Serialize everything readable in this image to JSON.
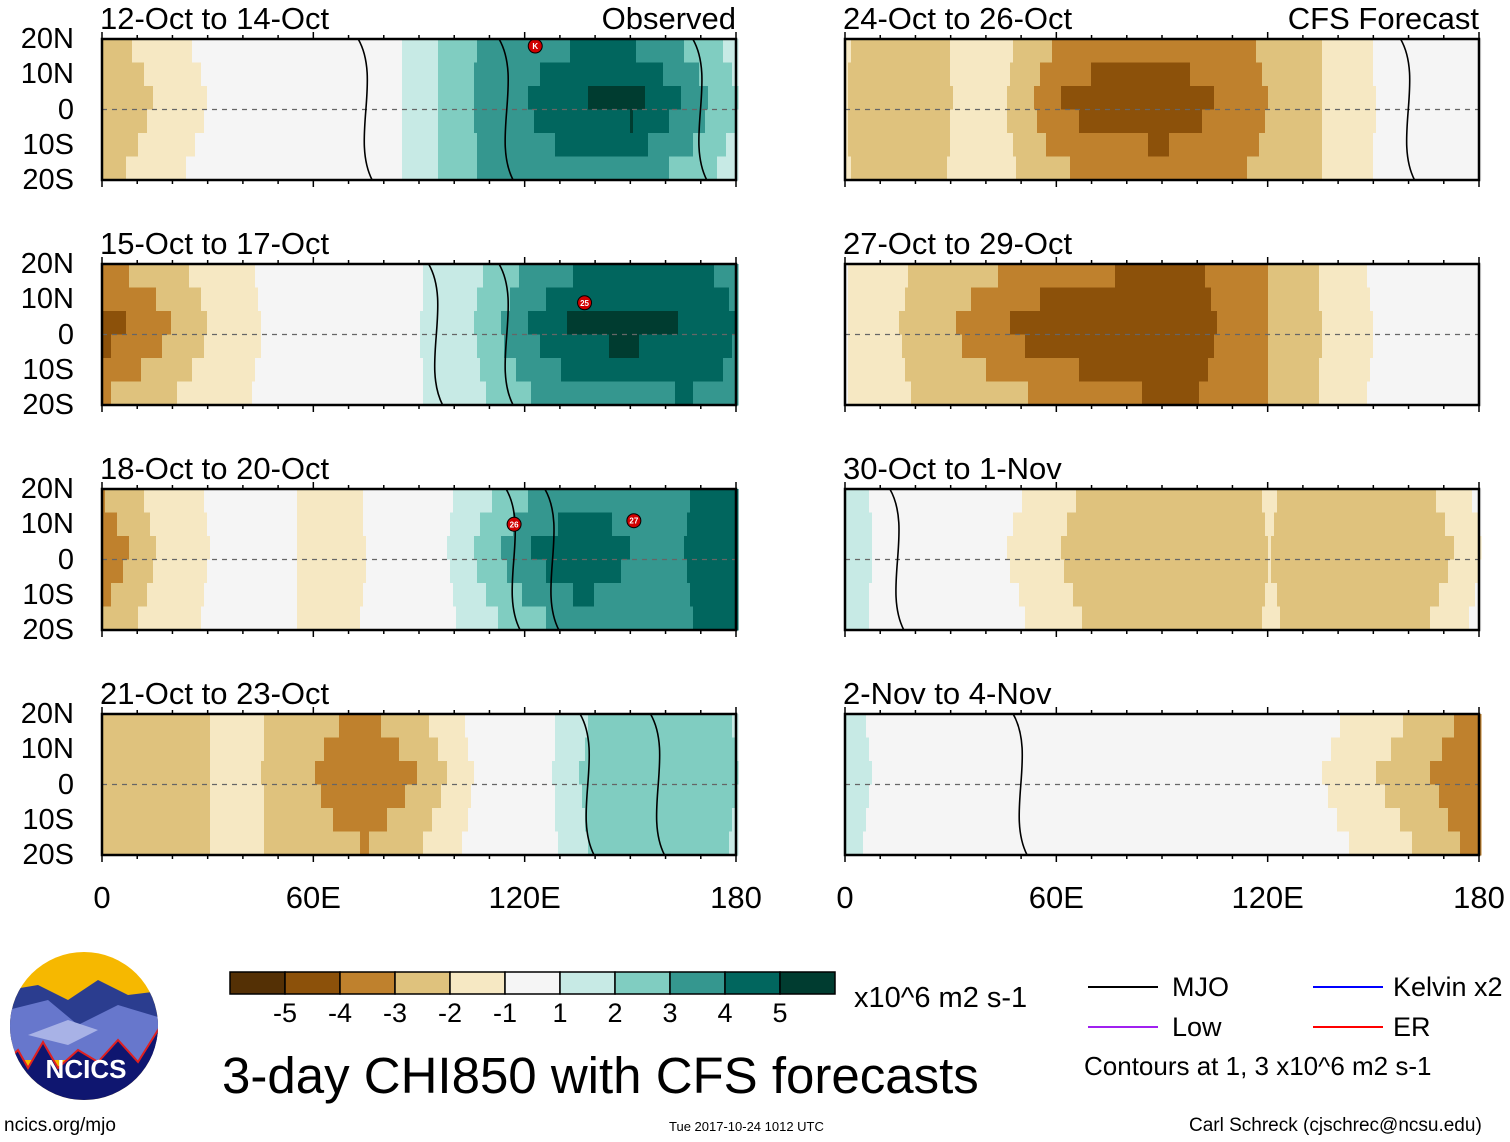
{
  "title": "3-day CHI850 with CFS forecasts",
  "footer": {
    "left": "ncics.org/mjo",
    "center": "Tue 2017-10-24 1012 UTC",
    "right": "Carl Schreck (cjschrec@ncsu.edu)"
  },
  "logo_text": "NCICS",
  "headers": {
    "observed": "Observed",
    "forecast": "CFS Forecast"
  },
  "colorbar": {
    "units": "x10^6 m2 s-1",
    "labels": [
      "-5",
      "-4",
      "-3",
      "-2",
      "-1",
      "1",
      "2",
      "3",
      "4",
      "5"
    ],
    "colors": [
      "#543005",
      "#8c510a",
      "#bf812d",
      "#dfc27d",
      "#f6e8c3",
      "#f5f5f5",
      "#c7eae5",
      "#80cdc1",
      "#35978f",
      "#01665e",
      "#003c30"
    ],
    "bounds": [
      -5,
      -4,
      -3,
      -2,
      -1,
      1,
      2,
      3,
      4,
      5
    ]
  },
  "legend": {
    "items": [
      {
        "label": "MJO",
        "color": "#000000"
      },
      {
        "label": "Kelvin x2",
        "color": "#0000ff"
      },
      {
        "label": "Low",
        "color": "#a020f0"
      },
      {
        "label": "ER",
        "color": "#ff0000"
      }
    ],
    "note": "Contours at 1, 3 x10^6 m2 s-1"
  },
  "axes": {
    "lat_labels": [
      "20N",
      "10N",
      "0",
      "10S",
      "20S"
    ],
    "lon_labels": [
      "0",
      "60E",
      "120E",
      "180"
    ],
    "lon_range": [
      0,
      180
    ],
    "lat_range": [
      -20,
      20
    ]
  },
  "chart_data": {
    "type": "heatmap",
    "profile_lons": [
      0,
      15,
      30,
      45,
      60,
      75,
      90,
      105,
      120,
      135,
      150,
      165,
      180
    ],
    "panels": [
      {
        "title": "12-Oct to 14-Oct",
        "column": "observed",
        "chi": [
          -3,
          -2,
          -1,
          0,
          0.5,
          0,
          1.5,
          3,
          4,
          5,
          5.5,
          4,
          2
        ],
        "mjo_lons": [
          75,
          115,
          170
        ],
        "storms": [
          {
            "label": "K",
            "lon": 123,
            "lat": 18
          }
        ]
      },
      {
        "title": "15-Oct to 17-Oct",
        "column": "observed",
        "chi": [
          -4.5,
          -3.5,
          -2,
          -1,
          0,
          0,
          1,
          2,
          4,
          5.5,
          5.5,
          5,
          4
        ],
        "mjo_lons": [
          95,
          115
        ],
        "storms": [
          {
            "label": "25",
            "lon": 137,
            "lat": 9
          }
        ]
      },
      {
        "title": "18-Oct to 20-Oct",
        "column": "observed",
        "chi": [
          -4,
          -2,
          -1,
          0,
          -1.5,
          -1,
          0,
          2,
          4,
          5,
          4,
          4,
          5
        ],
        "mjo_lons": [
          117,
          128
        ],
        "storms": [
          {
            "label": "26",
            "lon": 117,
            "lat": 10
          },
          {
            "label": "27",
            "lon": 151,
            "lat": 11
          }
        ]
      },
      {
        "title": "21-Oct to 23-Oct",
        "column": "observed",
        "chi": [
          -3,
          -3,
          -2,
          -2,
          -3,
          -4,
          -3,
          -1,
          0,
          2,
          3,
          3,
          2
        ],
        "mjo_lons": [
          138,
          158
        ],
        "storms": []
      },
      {
        "title": "24-Oct to 26-Oct",
        "column": "forecast",
        "chi": [
          -2,
          -3,
          -2,
          -2,
          -4,
          -5,
          -5,
          -4,
          -3,
          -2,
          -1,
          0,
          0
        ],
        "mjo_lons": [
          160
        ],
        "storms": []
      },
      {
        "title": "27-Oct to 29-Oct",
        "column": "forecast",
        "chi": [
          -1,
          -2,
          -3,
          -4,
          -5,
          -5,
          -5,
          -4,
          -3,
          -2,
          -1,
          -1,
          0
        ],
        "mjo_lons": [],
        "storms": []
      },
      {
        "title": "30-Oct to 1-Nov",
        "column": "forecast",
        "chi": [
          2,
          0,
          0,
          -1,
          -2,
          -3,
          -3,
          -3,
          -2,
          -3,
          -3,
          -3,
          -1
        ],
        "mjo_lons": [
          15
        ],
        "storms": []
      },
      {
        "title": "2-Nov to 4-Nov",
        "column": "forecast",
        "chi": [
          2,
          0,
          1,
          1,
          1,
          0,
          0,
          -1,
          0,
          -1,
          -2,
          -3,
          -4
        ],
        "mjo_lons": [
          50
        ],
        "storms": []
      }
    ]
  }
}
